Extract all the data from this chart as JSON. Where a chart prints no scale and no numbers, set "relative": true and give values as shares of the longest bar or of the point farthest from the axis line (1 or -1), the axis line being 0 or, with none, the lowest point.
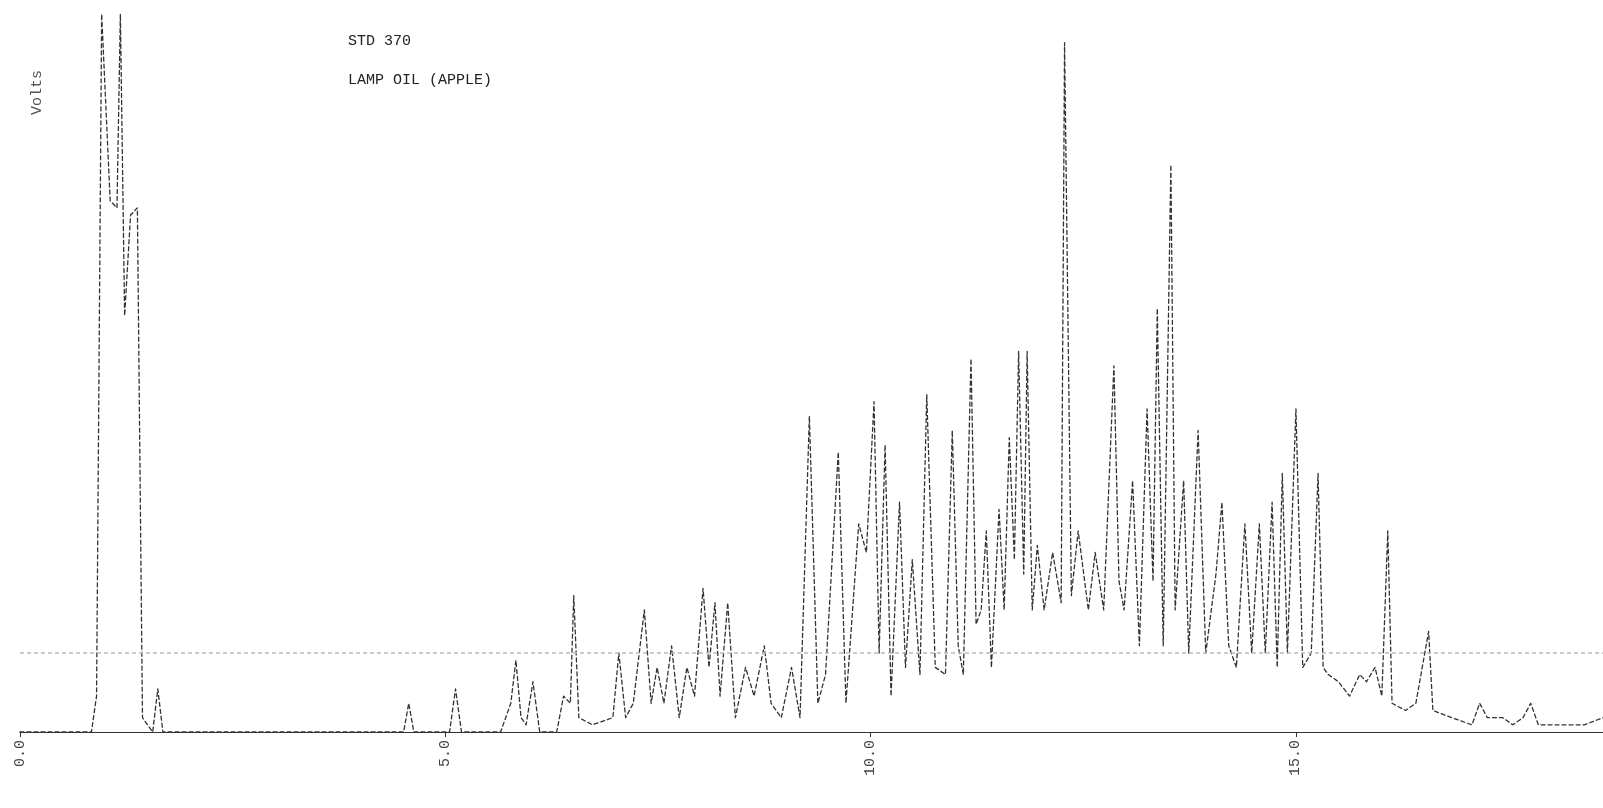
{
  "chart_data": {
    "type": "line",
    "ylabel": "Volts",
    "annotations": [
      "STD 370",
      "LAMP OIL (APPLE)"
    ],
    "relative": true,
    "line_style": "dashed",
    "marker": "none",
    "grid": false,
    "tick_labels": "x",
    "xlim": [
      0,
      18.61
    ],
    "xticks": [
      {
        "value": 0,
        "label": "0.0"
      },
      {
        "value": 5,
        "label": "5.0"
      },
      {
        "value": 10,
        "label": "10.0"
      },
      {
        "value": 15,
        "label": "15.0"
      }
    ],
    "ref_lines": [
      {
        "axis": "y",
        "value": 0.11,
        "color": "#bbbbbb",
        "line_style": "dashed"
      }
    ],
    "series": [
      {
        "color": "#333333",
        "x": [
          0,
          0.84,
          0.9,
          0.96,
          1.06,
          1.14,
          1.18,
          1.23,
          1.3,
          1.38,
          1.44,
          1.56,
          1.62,
          1.68,
          4.51,
          4.57,
          4.63,
          5.05,
          5.12,
          5.19,
          5.65,
          5.77,
          5.83,
          5.89,
          5.95,
          6.03,
          6.11,
          6.31,
          6.39,
          6.47,
          6.51,
          6.57,
          6.73,
          6.97,
          7.04,
          7.12,
          7.21,
          7.34,
          7.42,
          7.49,
          7.57,
          7.66,
          7.75,
          7.84,
          7.93,
          8.03,
          8.1,
          8.17,
          8.23,
          8.32,
          8.41,
          8.53,
          8.63,
          8.75,
          8.83,
          8.95,
          9.07,
          9.17,
          9.28,
          9.38,
          9.47,
          9.62,
          9.71,
          9.86,
          9.95,
          10.04,
          10.1,
          10.17,
          10.24,
          10.34,
          10.41,
          10.49,
          10.58,
          10.66,
          10.76,
          10.88,
          10.96,
          11.03,
          11.09,
          11.18,
          11.24,
          11.3,
          11.36,
          11.42,
          11.51,
          11.57,
          11.63,
          11.69,
          11.74,
          11.8,
          11.84,
          11.9,
          11.96,
          12.04,
          12.14,
          12.24,
          12.28,
          12.36,
          12.44,
          12.56,
          12.64,
          12.74,
          12.86,
          12.92,
          12.98,
          13.08,
          13.16,
          13.25,
          13.32,
          13.37,
          13.44,
          13.53,
          13.58,
          13.68,
          13.74,
          13.85,
          13.94,
          14.06,
          14.13,
          14.21,
          14.3,
          14.4,
          14.48,
          14.57,
          14.64,
          14.72,
          14.78,
          14.84,
          14.9,
          15.0,
          15.08,
          15.18,
          15.26,
          15.32,
          15.38,
          15.5,
          15.63,
          15.75,
          15.83,
          15.93,
          16.01,
          16.08,
          16.13,
          16.29,
          16.41,
          16.56,
          16.61,
          16.83,
          17.07,
          17.16,
          17.25,
          17.43,
          17.55,
          17.67,
          17.76,
          17.85,
          18.15,
          18.39,
          18.61
        ],
        "values": [
          0,
          0.0,
          0.05,
          1,
          0.74,
          0.73,
          1,
          0.58,
          0.72,
          0.73,
          0.02,
          0,
          0.06,
          0,
          0,
          0.04,
          0,
          0,
          0.06,
          0,
          0,
          0.04,
          0.1,
          0.02,
          0.01,
          0.07,
          0,
          0,
          0.05,
          0.04,
          0.19,
          0.02,
          0.01,
          0.02,
          0.11,
          0.02,
          0.04,
          0.17,
          0.04,
          0.09,
          0.04,
          0.12,
          0.02,
          0.09,
          0.05,
          0.2,
          0.09,
          0.18,
          0.05,
          0.18,
          0.02,
          0.09,
          0.05,
          0.12,
          0.04,
          0.02,
          0.09,
          0.02,
          0.44,
          0.04,
          0.08,
          0.39,
          0.04,
          0.29,
          0.25,
          0.46,
          0.11,
          0.4,
          0.05,
          0.32,
          0.09,
          0.24,
          0.08,
          0.47,
          0.09,
          0.08,
          0.42,
          0.12,
          0.08,
          0.52,
          0.15,
          0.17,
          0.28,
          0.09,
          0.31,
          0.17,
          0.41,
          0.24,
          0.53,
          0.22,
          0.53,
          0.17,
          0.26,
          0.17,
          0.25,
          0.18,
          0.96,
          0.19,
          0.28,
          0.17,
          0.25,
          0.17,
          0.51,
          0.21,
          0.17,
          0.35,
          0.12,
          0.45,
          0.21,
          0.59,
          0.12,
          0.79,
          0.17,
          0.35,
          0.11,
          0.42,
          0.11,
          0.22,
          0.32,
          0.12,
          0.09,
          0.29,
          0.11,
          0.29,
          0.11,
          0.32,
          0.09,
          0.36,
          0.11,
          0.45,
          0.09,
          0.11,
          0.36,
          0.09,
          0.08,
          0.07,
          0.05,
          0.08,
          0.07,
          0.09,
          0.05,
          0.28,
          0.04,
          0.03,
          0.04,
          0.14,
          0.03,
          0.02,
          0.01,
          0.04,
          0.02,
          0.02,
          0.01,
          0.02,
          0.04,
          0.01,
          0.01,
          0.01,
          0.02
        ]
      }
    ]
  }
}
